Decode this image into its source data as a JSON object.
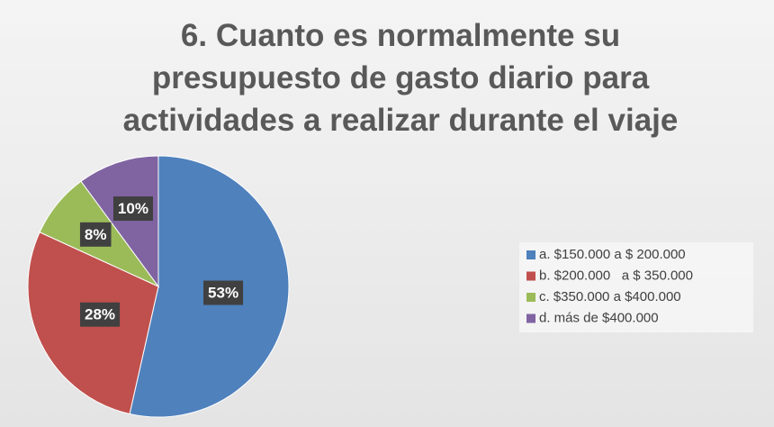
{
  "chart_data": {
    "type": "pie",
    "title": "6. Cuanto es normalmente su\npresupuesto de gasto diario para\nactividades a realizar durante el viaje",
    "categories": [
      "a. $150.000 a $ 200.000",
      "b. $200.000   a $ 350.000",
      "c. $350.000 a $400.000",
      "d. más de $400.000"
    ],
    "values": [
      53,
      28,
      8,
      10
    ],
    "value_labels": [
      "53%",
      "28%",
      "8%",
      "10%"
    ],
    "colors": [
      "#4f81bd",
      "#c0504d",
      "#9bbb59",
      "#8064a2"
    ],
    "legend": "right"
  }
}
